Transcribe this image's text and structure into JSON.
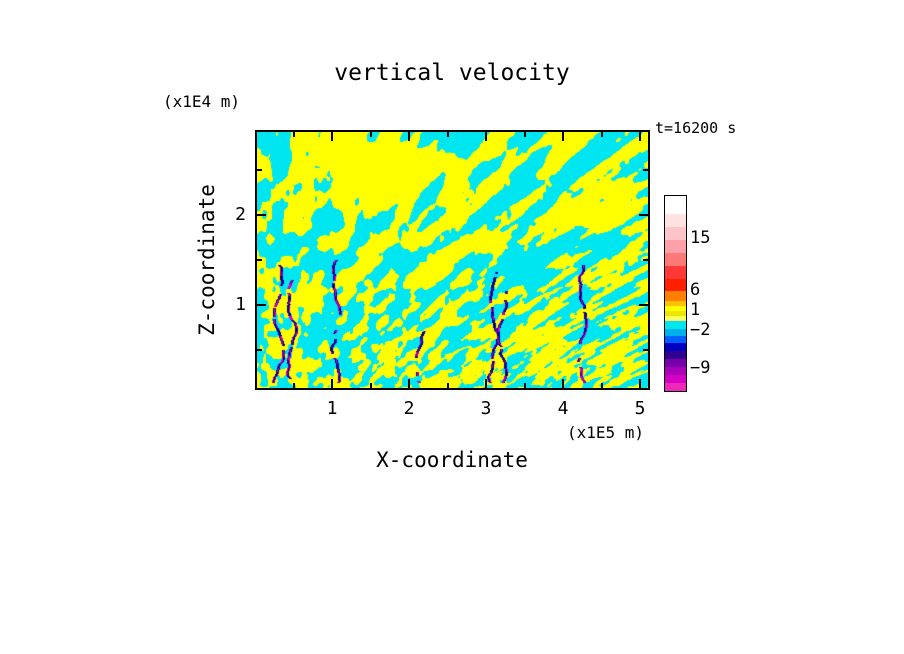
{
  "chart_data": {
    "type": "heatmap",
    "title": "vertical velocity",
    "time_label": "t=16200 s",
    "xlabel": "X-coordinate",
    "ylabel": "Z-coordinate",
    "x_unit_label": "(x1E5 m)",
    "y_unit_label": "(x1E4 m)",
    "x_ticks": [
      "1",
      "2",
      "3",
      "4",
      "5"
    ],
    "y_ticks": [
      "2",
      "1"
    ],
    "xlim": [
      0,
      5.1
    ],
    "ylim": [
      0,
      2.9
    ],
    "grid": false,
    "legend_position": "right",
    "field": {
      "description": "Turbulent convection slice: interleaved yellow updraft and cyan downdraft filaments forming plume-like structures that widen toward the top; narrow dark downdraft streaks (navy/purple/magenta) in the lower half near x = 0.3, 0.5, 1.0, 3.05, 3.15 and 4.2 (x1E5 m).",
      "positive_color": "#ffff00",
      "negative_color": "#00e6f0",
      "streak_colors": [
        "#000090",
        "#7a00aa",
        "#d400c4"
      ]
    },
    "colorbar": {
      "labels": [
        {
          "text": "15",
          "offset": 43
        },
        {
          "text": "6",
          "offset": 95
        },
        {
          "text": "1",
          "offset": 115
        },
        {
          "text": "−2",
          "offset": 135
        },
        {
          "text": "−9",
          "offset": 173
        }
      ],
      "segments": [
        {
          "color": "#ffffff",
          "h": 18
        },
        {
          "color": "#ffe2e2",
          "h": 13
        },
        {
          "color": "#ffc4c8",
          "h": 13
        },
        {
          "color": "#ffa0a8",
          "h": 13
        },
        {
          "color": "#ff7878",
          "h": 13
        },
        {
          "color": "#ff3838",
          "h": 13
        },
        {
          "color": "#ff2000",
          "h": 12
        },
        {
          "color": "#ff8000",
          "h": 10
        },
        {
          "color": "#ffc000",
          "h": 5
        },
        {
          "color": "#ffff00",
          "h": 5
        },
        {
          "color": "#e8e800",
          "h": 5
        },
        {
          "color": "#ffff60",
          "h": 5
        },
        {
          "color": "#00e6f0",
          "h": 8
        },
        {
          "color": "#00b0e8",
          "h": 7
        },
        {
          "color": "#0060ff",
          "h": 7
        },
        {
          "color": "#0000c0",
          "h": 8
        },
        {
          "color": "#300090",
          "h": 8
        },
        {
          "color": "#7700aa",
          "h": 8
        },
        {
          "color": "#aa00bb",
          "h": 8
        },
        {
          "color": "#d400c4",
          "h": 8
        },
        {
          "color": "#ee28b8",
          "h": 8
        }
      ]
    }
  }
}
